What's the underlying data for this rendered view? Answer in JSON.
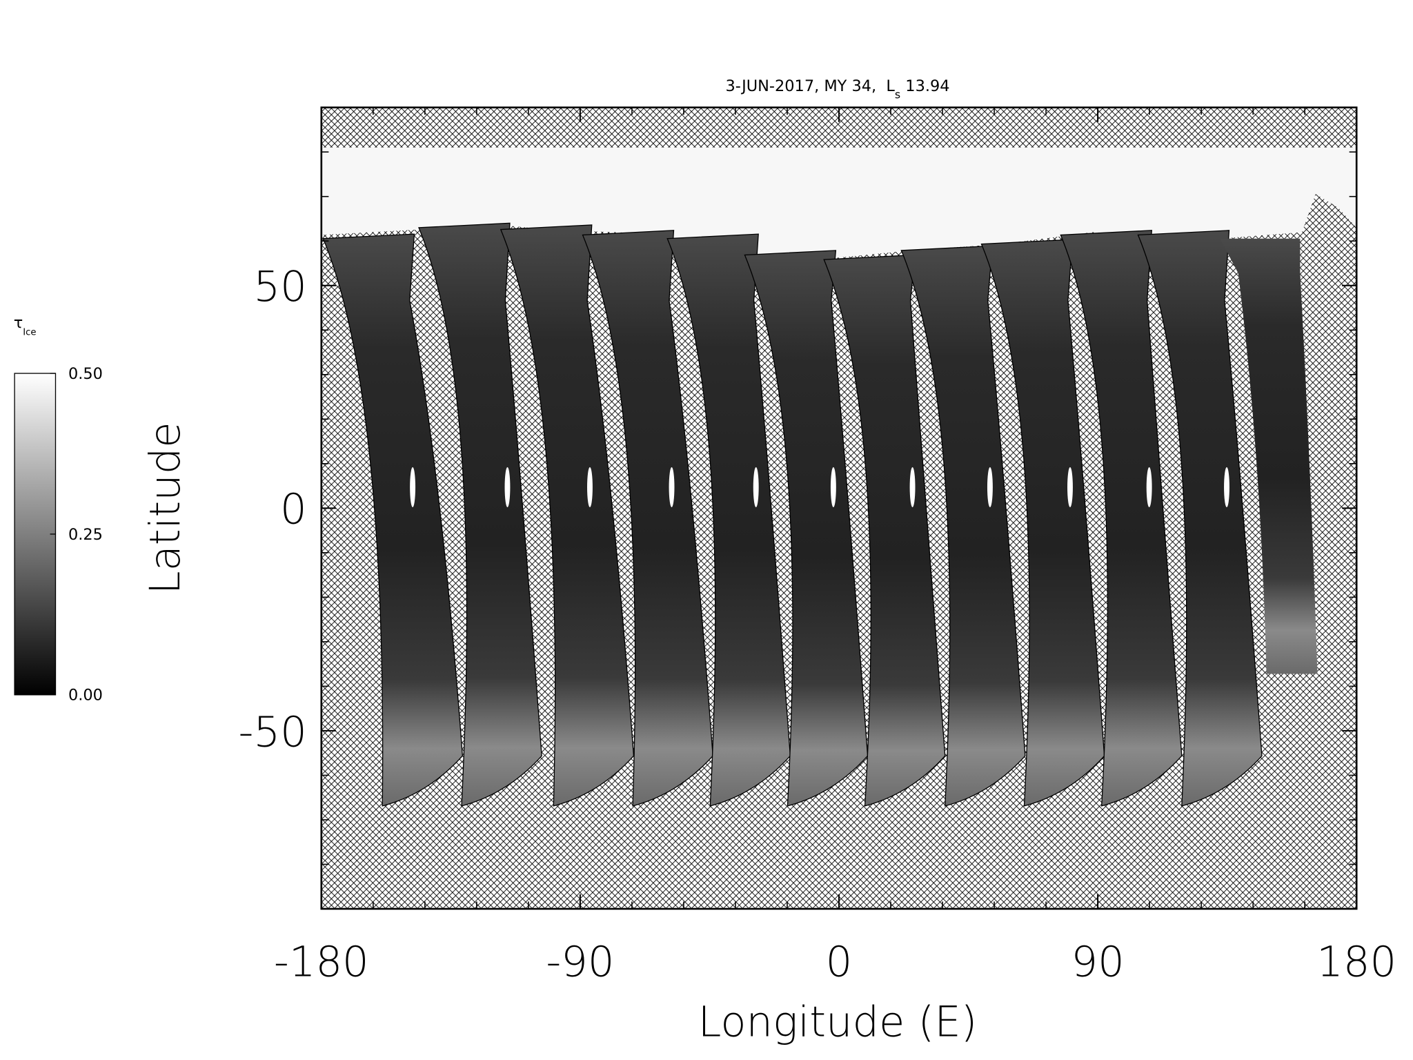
{
  "chart_data": {
    "type": "heatmap",
    "title": {
      "text": "3-JUN-2017, MY 34,  L",
      "subscript": "s",
      "suffix": " 13.94"
    },
    "xlabel": "Longitude (E)",
    "ylabel": "Latitude",
    "xlim": [
      -180,
      180
    ],
    "ylim": [
      -90,
      90
    ],
    "xticks": [
      -180,
      -90,
      0,
      90,
      180
    ],
    "yticks": [
      -50,
      0,
      50
    ],
    "xminorticks": [
      -162,
      -144,
      -126,
      -108,
      -72,
      -54,
      -36,
      -18,
      18,
      36,
      54,
      72,
      108,
      126,
      144,
      162
    ],
    "yminorticks": [
      -80,
      -70,
      -60,
      -40,
      -30,
      -20,
      -10,
      10,
      20,
      30,
      40,
      60,
      70,
      80
    ],
    "colorbar": {
      "label": "τ",
      "label_subscript": "Ice",
      "range": [
        0,
        0.5
      ],
      "colors": [
        "#000000",
        "#ffffff"
      ],
      "ticks": [
        {
          "value": 0,
          "label": "0.00"
        },
        {
          "value": 0.25,
          "label": "0.25"
        },
        {
          "value": 0.5,
          "label": "0.50"
        }
      ]
    }
  }
}
